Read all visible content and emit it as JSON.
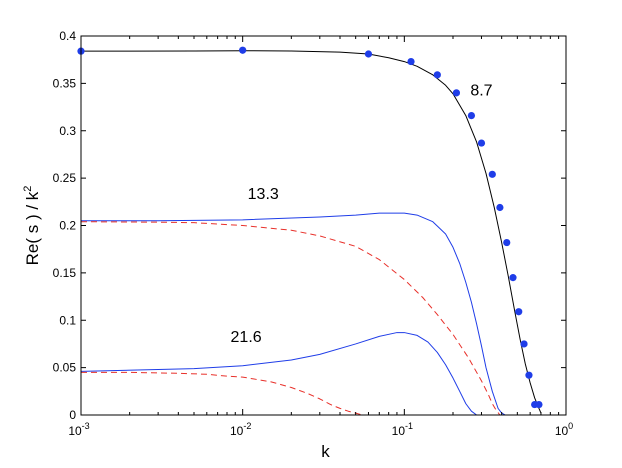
{
  "chart_data": {
    "type": "line",
    "xlabel": "k",
    "ylabel_main": "Re( s ) / k",
    "ylabel_sup": "2",
    "xscale": "log",
    "xlim": [
      0.001,
      1
    ],
    "ylim": [
      0,
      0.4
    ],
    "grid": false,
    "legend": "none",
    "x_ticks": [
      {
        "base": "10",
        "exp": "-3",
        "value": 0.001
      },
      {
        "base": "10",
        "exp": "-2",
        "value": 0.01
      },
      {
        "base": "10",
        "exp": "-1",
        "value": 0.1
      },
      {
        "base": "10",
        "exp": "0",
        "value": 1
      }
    ],
    "y_ticks": [
      {
        "label": "0",
        "value": 0
      },
      {
        "label": "0.05",
        "value": 0.05
      },
      {
        "label": "0.1",
        "value": 0.1
      },
      {
        "label": "0.15",
        "value": 0.15
      },
      {
        "label": "0.2",
        "value": 0.2
      },
      {
        "label": "0.25",
        "value": 0.25
      },
      {
        "label": "0.3",
        "value": 0.3
      },
      {
        "label": "0.35",
        "value": 0.35
      },
      {
        "label": "0.4",
        "value": 0.4
      }
    ],
    "annotations": [
      {
        "text": "8.7",
        "x": 0.3,
        "y": 0.337
      },
      {
        "text": "13.3",
        "x": 0.0134,
        "y": 0.228
      },
      {
        "text": "21.6",
        "x": 0.0105,
        "y": 0.077
      }
    ],
    "series": [
      {
        "style": "solid",
        "color": "#000000",
        "x": [
          0.001,
          0.002,
          0.005,
          0.01,
          0.02,
          0.04,
          0.06,
          0.08,
          0.1,
          0.12,
          0.15,
          0.18,
          0.2,
          0.24,
          0.28,
          0.32,
          0.36,
          0.4,
          0.44,
          0.48,
          0.52,
          0.56,
          0.6,
          0.64,
          0.68,
          0.7
        ],
        "y": [
          0.384,
          0.384,
          0.3842,
          0.3845,
          0.3842,
          0.383,
          0.381,
          0.377,
          0.373,
          0.368,
          0.359,
          0.348,
          0.339,
          0.316,
          0.288,
          0.255,
          0.219,
          0.182,
          0.146,
          0.111,
          0.08,
          0.054,
          0.034,
          0.018,
          0.007,
          0.002
        ]
      },
      {
        "style": "markers",
        "color": "#1f3de8",
        "x": [
          0.001,
          0.01,
          0.06,
          0.11,
          0.16,
          0.21,
          0.26,
          0.3,
          0.35,
          0.39,
          0.43,
          0.47,
          0.51,
          0.55,
          0.59,
          0.64,
          0.68
        ],
        "y": [
          0.384,
          0.385,
          0.381,
          0.373,
          0.359,
          0.34,
          0.316,
          0.287,
          0.254,
          0.219,
          0.182,
          0.145,
          0.109,
          0.075,
          0.042,
          0.011,
          0.011
        ]
      },
      {
        "style": "solid",
        "color": "#1f3de8",
        "x": [
          0.001,
          0.003,
          0.01,
          0.03,
          0.05,
          0.07,
          0.09,
          0.1,
          0.12,
          0.15,
          0.18,
          0.2,
          0.22,
          0.24,
          0.26,
          0.28,
          0.3,
          0.32,
          0.35,
          0.38,
          0.4,
          0.42
        ],
        "y": [
          0.205,
          0.205,
          0.206,
          0.209,
          0.211,
          0.213,
          0.213,
          0.213,
          0.211,
          0.204,
          0.191,
          0.177,
          0.16,
          0.14,
          0.119,
          0.096,
          0.073,
          0.05,
          0.025,
          0.007,
          0.002,
          0.0
        ]
      },
      {
        "style": "dashed",
        "color": "#e8302a",
        "x": [
          0.001,
          0.003,
          0.005,
          0.01,
          0.02,
          0.03,
          0.05,
          0.07,
          0.1,
          0.13,
          0.16,
          0.2,
          0.25,
          0.3,
          0.33,
          0.35,
          0.37,
          0.39
        ],
        "y": [
          0.204,
          0.2035,
          0.203,
          0.2,
          0.195,
          0.189,
          0.178,
          0.164,
          0.143,
          0.124,
          0.106,
          0.085,
          0.06,
          0.036,
          0.022,
          0.012,
          0.005,
          0.0
        ]
      },
      {
        "style": "solid",
        "color": "#1f3de8",
        "x": [
          0.001,
          0.003,
          0.005,
          0.01,
          0.02,
          0.03,
          0.05,
          0.07,
          0.09,
          0.1,
          0.12,
          0.14,
          0.16,
          0.18,
          0.2,
          0.22,
          0.24,
          0.26,
          0.28
        ],
        "y": [
          0.046,
          0.048,
          0.049,
          0.052,
          0.058,
          0.064,
          0.075,
          0.083,
          0.087,
          0.087,
          0.084,
          0.077,
          0.066,
          0.053,
          0.039,
          0.025,
          0.012,
          0.004,
          0.0
        ]
      },
      {
        "style": "dashed",
        "color": "#e8302a",
        "x": [
          0.001,
          0.002,
          0.004,
          0.006,
          0.008,
          0.01,
          0.015,
          0.02,
          0.025,
          0.03,
          0.035,
          0.04,
          0.045,
          0.05,
          0.055
        ],
        "y": [
          0.045,
          0.045,
          0.044,
          0.043,
          0.041,
          0.04,
          0.035,
          0.029,
          0.023,
          0.017,
          0.011,
          0.007,
          0.004,
          0.002,
          0.0
        ]
      }
    ]
  }
}
